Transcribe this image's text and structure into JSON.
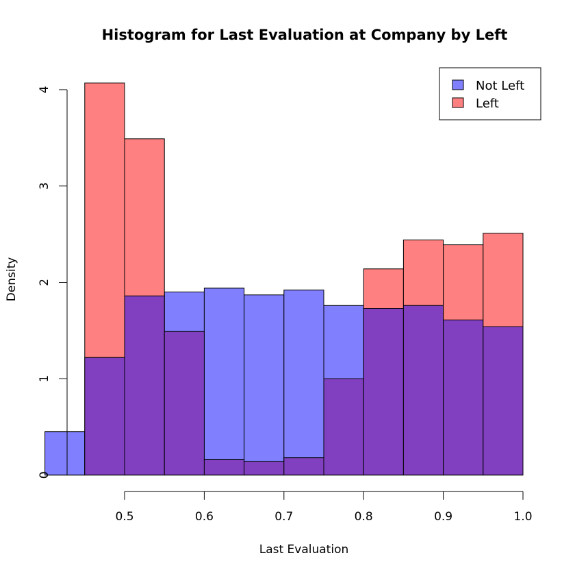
{
  "chart_data": {
    "type": "bar",
    "subtype": "overlaid-histogram",
    "title": "Histogram for Last Evaluation at Company by Left",
    "xlabel": "Last Evaluation",
    "ylabel": "Density",
    "xlim": [
      0.45,
      1.0
    ],
    "ylim": [
      0,
      4
    ],
    "x_ticks": [
      "0.5",
      "0.6",
      "0.7",
      "0.8",
      "0.9",
      "1.0"
    ],
    "y_ticks": [
      "0",
      "1",
      "2",
      "3",
      "4"
    ],
    "bin_width": 0.05,
    "series": [
      {
        "name": "Not Left",
        "color": "#8080ff",
        "bins": [
          {
            "start": 0.4,
            "end": 0.45,
            "value": 0.45
          },
          {
            "start": 0.45,
            "end": 0.5,
            "value": 1.22
          },
          {
            "start": 0.5,
            "end": 0.55,
            "value": 1.86
          },
          {
            "start": 0.55,
            "end": 0.6,
            "value": 1.9
          },
          {
            "start": 0.6,
            "end": 0.65,
            "value": 1.94
          },
          {
            "start": 0.65,
            "end": 0.7,
            "value": 1.87
          },
          {
            "start": 0.7,
            "end": 0.75,
            "value": 1.92
          },
          {
            "start": 0.75,
            "end": 0.8,
            "value": 1.76
          },
          {
            "start": 0.8,
            "end": 0.85,
            "value": 1.73
          },
          {
            "start": 0.85,
            "end": 0.9,
            "value": 1.76
          },
          {
            "start": 0.9,
            "end": 0.95,
            "value": 1.61
          },
          {
            "start": 0.95,
            "end": 1.0,
            "value": 1.54
          }
        ]
      },
      {
        "name": "Left",
        "color": "#ff8080",
        "bins": [
          {
            "start": 0.45,
            "end": 0.5,
            "value": 4.07
          },
          {
            "start": 0.5,
            "end": 0.55,
            "value": 3.49
          },
          {
            "start": 0.55,
            "end": 0.6,
            "value": 1.49
          },
          {
            "start": 0.6,
            "end": 0.65,
            "value": 0.16
          },
          {
            "start": 0.65,
            "end": 0.7,
            "value": 0.14
          },
          {
            "start": 0.7,
            "end": 0.75,
            "value": 0.18
          },
          {
            "start": 0.75,
            "end": 0.8,
            "value": 1.0
          },
          {
            "start": 0.8,
            "end": 0.85,
            "value": 2.14
          },
          {
            "start": 0.85,
            "end": 0.9,
            "value": 2.44
          },
          {
            "start": 0.9,
            "end": 0.95,
            "value": 2.39
          },
          {
            "start": 0.95,
            "end": 1.0,
            "value": 2.51
          }
        ]
      }
    ],
    "overlap_color": "#8040c0",
    "legend": {
      "position": "top-right",
      "entries": [
        {
          "label": "Not Left",
          "color": "#8080ff"
        },
        {
          "label": "Left",
          "color": "#ff8080"
        }
      ]
    }
  }
}
